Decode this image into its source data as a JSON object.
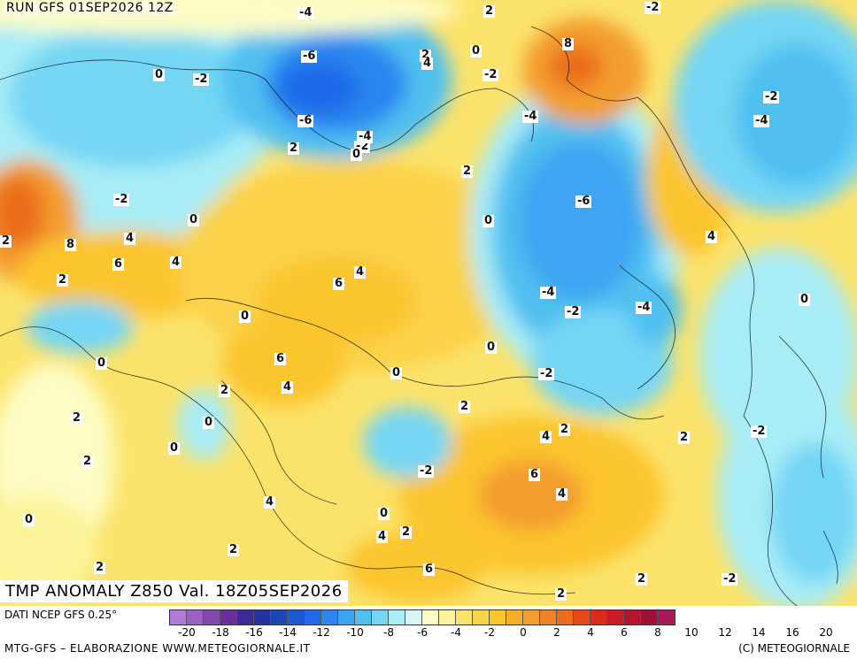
{
  "header": {
    "run_label": "RUN GFS 01SEP2026 12Z"
  },
  "map": {
    "title": "TMP ANOMALY Z850 Val. 18Z05SEP2026",
    "isolines": [
      "-4",
      "2",
      "-2",
      "-6",
      "8",
      "0",
      "-2",
      "2",
      "4",
      "0",
      "-2",
      "-2",
      "-4",
      "-6",
      "-4",
      "-2",
      "0",
      "2",
      "-4",
      "-2",
      "0",
      "-2",
      "0",
      "-6",
      "2",
      "4",
      "8",
      "6",
      "4",
      "0",
      "4",
      "6",
      "2",
      "0",
      "4",
      "-4",
      "-2",
      "-4",
      "6",
      "4",
      "0",
      "2",
      "0",
      "-2",
      "2",
      "2",
      "2",
      "0",
      "4",
      "2",
      "0",
      "-2",
      "-2",
      "6",
      "2",
      "4",
      "0",
      "4",
      "0",
      "2",
      "4",
      "2",
      "6",
      "2",
      "2",
      "2",
      "-2"
    ],
    "colors": {
      "cold_dark": "#1e6ae8",
      "cold": "#4fc0f0",
      "cool": "#a8ecf6",
      "neutral": "#fdfcc4",
      "warm": "#fbe36b",
      "warmer": "#fbc52e",
      "hot": "#f39d2e",
      "hotter": "#eb6d1e"
    }
  },
  "footer": {
    "data_source": "DATI NCEP GFS 0.25°",
    "credit_left": "MTG-GFS – ELABORAZIONE WWW.METEOGIORNALE.IT",
    "credit_right": "(C) METEOGIORNALE",
    "legend_colors": [
      "#b27ad6",
      "#9c5fc4",
      "#8348b0",
      "#6a2f99",
      "#3b2a9a",
      "#24339f",
      "#1a46b6",
      "#1c5bcf",
      "#1e6ae8",
      "#2b86ef",
      "#3ca5f2",
      "#4fc0f0",
      "#74d6f4",
      "#a8ecf6",
      "#d6f7f7",
      "#fdfcc4",
      "#fbf49a",
      "#fbe36b",
      "#fbd24a",
      "#fbc52e",
      "#f7ac2c",
      "#f39d2e",
      "#ee8427",
      "#eb6d1e",
      "#e64a18",
      "#de2a1a",
      "#cc1a24",
      "#b3162c",
      "#9e1234",
      "#a8185a"
    ],
    "legend_ticks": [
      "-20",
      "-18",
      "-16",
      "-14",
      "-12",
      "-10",
      "-8",
      "-6",
      "-4",
      "-2",
      "0",
      "2",
      "4",
      "6",
      "8",
      "10",
      "12",
      "14",
      "16",
      "20"
    ]
  }
}
